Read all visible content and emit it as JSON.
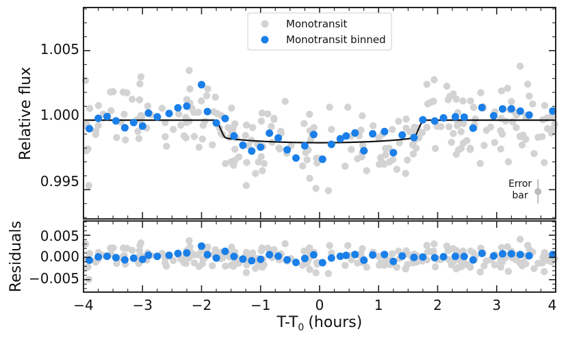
{
  "chart_data": {
    "type": "scatter",
    "xlabel": "T-T",
    "xlabel_sub": "0",
    "xlabel_unit": "(hours)",
    "xlim": [
      -4,
      4
    ],
    "x_ticks": [
      "−4",
      "−3",
      "−2",
      "−1",
      "0",
      "1",
      "2",
      "3",
      "4"
    ],
    "colors": {
      "raw": "#d3d3d3",
      "binned": "#1a7fe8",
      "model": "#111111"
    },
    "legend": {
      "placement": "top-center",
      "entries": [
        "Monotransit",
        "Monotransit binned"
      ]
    },
    "top_panel": {
      "ylabel": "Relative flux",
      "ylim": [
        0.9929,
        1.0081
      ],
      "y_ticks": [
        "0.995",
        "1.000",
        "1.005"
      ],
      "annotation": [
        "Error",
        "bar"
      ],
      "error_bar": {
        "x": 3.7,
        "y": 0.99487,
        "err": 0.00087
      },
      "model": {
        "depth": 0.00162,
        "ingress_start": -1.78,
        "ingress_end": -1.58,
        "egress_start": 1.58,
        "egress_end": 1.78
      },
      "binned": {
        "x": [
          -3.9,
          -3.75,
          -3.6,
          -3.45,
          -3.3,
          -3.15,
          -3.0,
          -2.9,
          -2.75,
          -2.55,
          -2.4,
          -2.25,
          -2.0,
          -1.9,
          -1.75,
          -1.6,
          -1.45,
          -1.3,
          -1.15,
          -1.0,
          -0.85,
          -0.7,
          -0.55,
          -0.4,
          -0.25,
          -0.1,
          0.05,
          0.2,
          0.35,
          0.45,
          0.6,
          0.75,
          0.9,
          1.1,
          1.25,
          1.4,
          1.6,
          1.75,
          1.95,
          2.1,
          2.3,
          2.45,
          2.6,
          2.75,
          2.95,
          3.1,
          3.25,
          3.4,
          3.55,
          3.95
        ],
        "y": [
          0.99939,
          1.00013,
          1.00026,
          0.99995,
          0.99945,
          0.99983,
          0.99957,
          1.00051,
          1.00024,
          1.00048,
          1.00089,
          1.00101,
          1.00255,
          1.00062,
          0.9998,
          1.00012,
          0.99886,
          0.9982,
          0.99778,
          0.99806,
          0.99907,
          0.99872,
          0.99787,
          0.99728,
          0.99816,
          0.99897,
          0.99719,
          0.99826,
          0.99866,
          0.99886,
          0.99908,
          0.9978,
          0.99902,
          0.99918,
          0.99766,
          0.99893,
          0.99875,
          1.00003,
          0.99994,
          1.00016,
          1.00024,
          1.00022,
          0.99943,
          1.00091,
          1.00032,
          1.00081,
          1.00082,
          1.00065,
          1.00037,
          1.00066
        ]
      }
    },
    "bottom_panel": {
      "ylabel": "Residuals",
      "ylim": [
        -0.0078,
        0.0082
      ],
      "y_ticks": [
        "0.005",
        "0.000",
        "−0.005"
      ]
    }
  }
}
